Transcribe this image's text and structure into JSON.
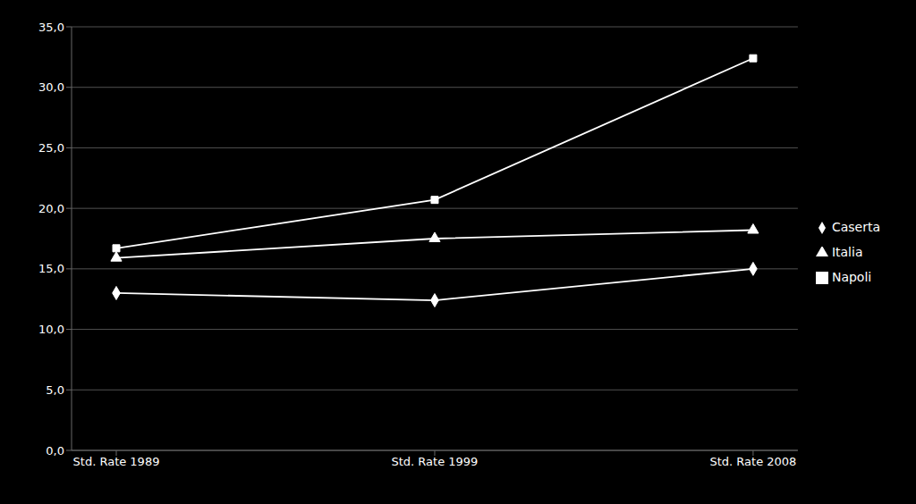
{
  "chart_data": {
    "type": "line",
    "categories": [
      "Std. Rate 1989",
      "Std. Rate 1999",
      "Std. Rate 2008"
    ],
    "series": [
      {
        "name": "Caserta",
        "color": "#ffffff",
        "marker": "diamond",
        "values": [
          13.0,
          12.4,
          15.0
        ]
      },
      {
        "name": "Napoli",
        "color": "#ffffff",
        "marker": "square",
        "values": [
          16.7,
          20.7,
          32.4
        ]
      },
      {
        "name": "Italia",
        "color": "#ffffff",
        "marker": "triangle",
        "values": [
          15.9,
          17.5,
          18.2
        ]
      }
    ],
    "ylim": [
      0,
      35
    ],
    "yticks": [
      {
        "value": 0,
        "label": "0,0"
      },
      {
        "value": 5,
        "label": "5,0"
      },
      {
        "value": 10,
        "label": "10,0"
      },
      {
        "value": 15,
        "label": "15,0"
      },
      {
        "value": 20,
        "label": "20,0"
      },
      {
        "value": 25,
        "label": "25,0"
      },
      {
        "value": 30,
        "label": "30,0"
      },
      {
        "value": 35,
        "label": "35,0"
      }
    ],
    "grid": true,
    "legend": "right"
  }
}
